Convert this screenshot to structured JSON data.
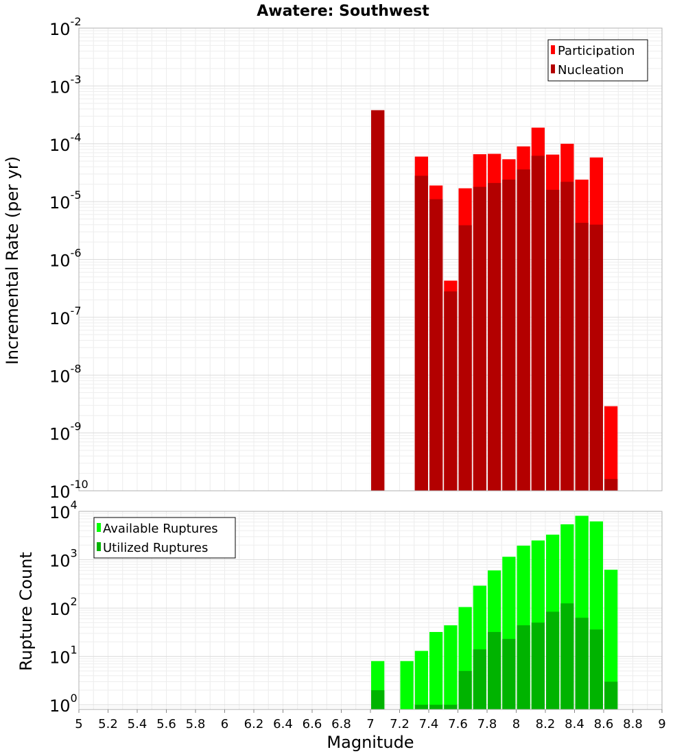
{
  "chart_data": [
    {
      "type": "bar",
      "title": "Awatere: Southwest",
      "xlabel": "Magnitude",
      "ylabel": "Incremental Rate (per yr)",
      "yscale": "log",
      "xlim": [
        5,
        9
      ],
      "ylim": [
        1e-10,
        0.01
      ],
      "y_exponents": [
        -10,
        -9,
        -8,
        -7,
        -6,
        -5,
        -4,
        -3,
        -2
      ],
      "grid": true,
      "legend_position": "top-right",
      "bin_width": 0.1,
      "series": [
        {
          "name": "Participation",
          "color": "#ff0000",
          "x": [
            7.05,
            7.35,
            7.45,
            7.55,
            7.65,
            7.75,
            7.85,
            7.95,
            8.05,
            8.15,
            8.25,
            8.35,
            8.45,
            8.55,
            8.65
          ],
          "values": [
            0.00038,
            6e-05,
            1.9e-05,
            4.3e-07,
            1.7e-05,
            6.6e-05,
            6.7e-05,
            5.4e-05,
            9e-05,
            0.00019,
            6.5e-05,
            0.0001,
            2.4e-05,
            5.8e-05,
            2.9e-09
          ]
        },
        {
          "name": "Nucleation",
          "color": "#b30000",
          "x": [
            7.05,
            7.35,
            7.45,
            7.55,
            7.65,
            7.75,
            7.85,
            7.95,
            8.05,
            8.15,
            8.25,
            8.35,
            8.45,
            8.55,
            8.65
          ],
          "values": [
            0.00038,
            2.8e-05,
            1.1e-05,
            2.8e-07,
            3.9e-06,
            1.8e-05,
            2.1e-05,
            2.4e-05,
            3.6e-05,
            6.2e-05,
            1.6e-05,
            2.2e-05,
            4.3e-06,
            4e-06,
            1.6e-10
          ]
        }
      ]
    },
    {
      "type": "bar",
      "xlabel": "Magnitude",
      "ylabel": "Rupture Count",
      "yscale": "log",
      "xlim": [
        5,
        9
      ],
      "ylim": [
        0.8,
        10000
      ],
      "y_exponents": [
        0,
        1,
        2,
        3,
        4
      ],
      "x_ticks": [
        "5",
        "5.2",
        "5.4",
        "5.6",
        "5.8",
        "6",
        "6.2",
        "6.4",
        "6.6",
        "6.8",
        "7",
        "7.2",
        "7.4",
        "7.6",
        "7.8",
        "8",
        "8.2",
        "8.4",
        "8.6",
        "8.8",
        "9"
      ],
      "grid": true,
      "legend_position": "top-left",
      "bin_width": 0.1,
      "series": [
        {
          "name": "Available Ruptures",
          "color": "#00ff00",
          "x": [
            7.05,
            7.25,
            7.35,
            7.45,
            7.55,
            7.65,
            7.75,
            7.85,
            7.95,
            8.05,
            8.15,
            8.25,
            8.35,
            8.45,
            8.55,
            8.65
          ],
          "values": [
            8,
            8,
            13,
            32,
            44,
            105,
            290,
            600,
            1150,
            1950,
            2500,
            3300,
            5400,
            8100,
            6200,
            620
          ]
        },
        {
          "name": "Utilized Ruptures",
          "color": "#00b300",
          "x": [
            7.05,
            7.35,
            7.45,
            7.55,
            7.65,
            7.75,
            7.85,
            7.95,
            8.05,
            8.15,
            8.25,
            8.35,
            8.45,
            8.55,
            8.65
          ],
          "values": [
            2,
            1,
            1,
            1,
            5,
            14,
            32,
            23,
            44,
            50,
            84,
            125,
            63,
            36,
            3
          ]
        }
      ]
    }
  ]
}
